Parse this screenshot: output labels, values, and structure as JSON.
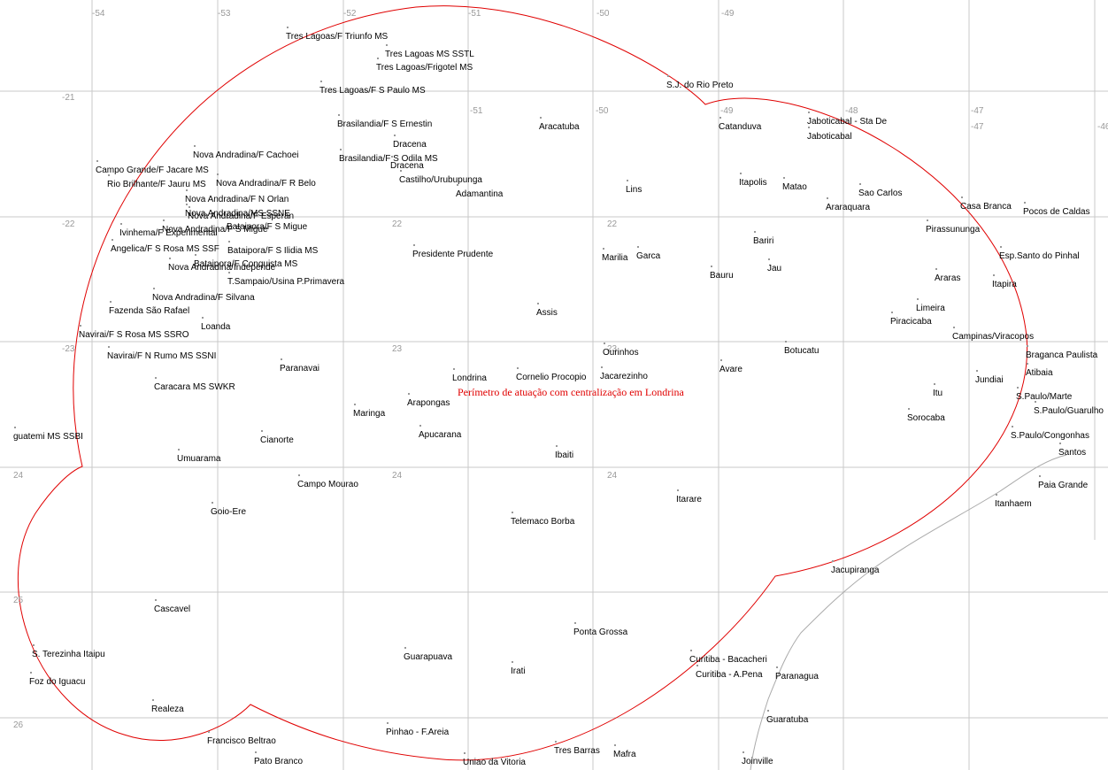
{
  "grid_labels": [
    "-54",
    "-53",
    "-52",
    "-51",
    "-50",
    "-49",
    "-21",
    "-51",
    "-50",
    "-49",
    "-48",
    "-47",
    "-47",
    "-46",
    "-22",
    "22",
    "22",
    "-23",
    "23",
    "23",
    "24",
    "24",
    "24",
    "25",
    "26"
  ],
  "perimeter_label": "Perímetro de atuação com centralização em Londrina",
  "places": [
    "Tres Lagoas/F Triunfo MS",
    "Tres Lagoas MS SSTL",
    "Tres Lagoas/Frigotel MS",
    "Tres Lagoas/F S Paulo MS",
    "S.J. do Rio Preto",
    "Brasilandia/F S Ernestin",
    "Aracatuba",
    "Catanduva",
    "Jaboticabal - Sta De",
    "Jaboticabal",
    "Dracena",
    "Nova Andradina/F Cachoei",
    "Brasilandia/F S Odila MS",
    "Dracena",
    "Campo Grande/F Jacare MS",
    "Castilho/Urubupunga",
    "Rio Brilhante/F Jauru MS",
    "Nova Andradina/F R Belo",
    "Adamantina",
    "Lins",
    "Itapolis",
    "Matao",
    "Sao Carlos",
    "Nova Andradina/F N Orlan",
    "Araraquara",
    "Casa Branca",
    "Pocos de Caldas",
    "Nova Andradina/MS SSNE",
    "Nova Andradina/F Esperan",
    "Nova Andradina/F S Migue",
    "Bataipora/F S Migue",
    "Pirassununga",
    "Ivinhema/F Experimental",
    "Bariri",
    "Angelica/F S Rosa MS SSF",
    "Bataipora/F S Ilidia MS",
    "Presidente Prudente",
    "Marilia",
    "Garca",
    "Esp.Santo do Pinhal",
    "Bataipora/F Conquista MS",
    "Nova Andradina/Independe",
    "Jau",
    "Bauru",
    "Araras",
    "T.Sampaio/Usina P.Primavera",
    "Itapira",
    "Nova Andradina/F Silvana",
    "Fazenda São Rafael",
    "Assis",
    "Limeira",
    "Piracicaba",
    "Loanda",
    "Navirai/F S Rosa MS SSRO",
    "Campinas/Viracopos",
    "Botucatu",
    "Ourinhos",
    "Braganca Paulista",
    "Navirai/F N Rumo MS SSNI",
    "Paranavai",
    "Avare",
    "Atibaia",
    "Londrina",
    "Cornelio Procopio",
    "Jacarezinho",
    "Jundiai",
    "Caracara MS SWKR",
    "Itu",
    "S.Paulo/Marte",
    "Arapongas",
    "S.Paulo/Guarulho",
    "Maringa",
    "Sorocaba",
    "Apucarana",
    "guatemi MS SSBI",
    "S.Paulo/Congonhas",
    "Cianorte",
    "Santos",
    "Ibaiti",
    "Umuarama",
    "Campo Mourao",
    "Paia Grande",
    "Itarare",
    "Itanhaem",
    "Goio-Ere",
    "Telemaco Borba",
    "Jacupiranga",
    "Cascavel",
    "Ponta Grossa",
    "S. Terezinha Itaipu",
    "Guarapuava",
    "Curitiba - Bacacheri",
    "Irati",
    "Curitiba - A.Pena",
    "Paranagua",
    "Foz do Iguacu",
    "Realeza",
    "Guaratuba",
    "Pinhao - F.Areia",
    "Francisco Beltrao",
    "Tres Barras",
    "Mafra",
    "Pato Branco",
    "Uniao da Vitoria",
    "Joinville"
  ]
}
